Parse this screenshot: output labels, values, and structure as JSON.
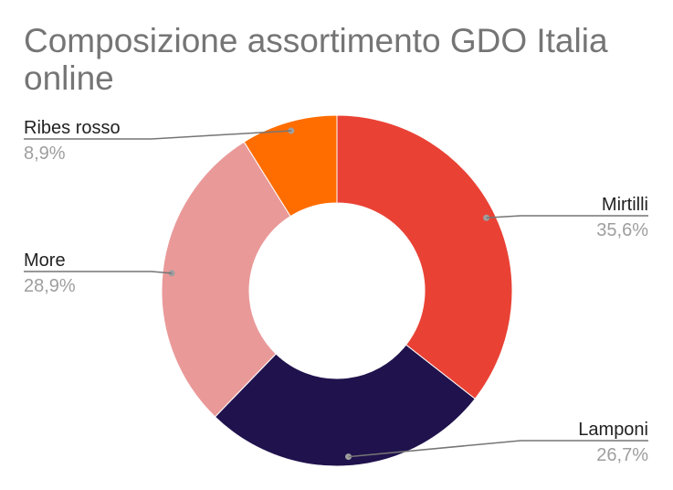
{
  "chart_data": {
    "type": "pie",
    "subtype": "donut",
    "title": "Composizione assortimento GDO Italia online",
    "start_angle_deg": 0,
    "direction": "clockwise",
    "slices": [
      {
        "label": "Mirtilli",
        "value": 35.6,
        "display": "35,6%",
        "color": "#e94235"
      },
      {
        "label": "Lamponi",
        "value": 26.7,
        "display": "26,7%",
        "color": "#20124d"
      },
      {
        "label": "More",
        "value": 28.9,
        "display": "28,9%",
        "color": "#ea9999"
      },
      {
        "label": "Ribes rosso",
        "value": 8.9,
        "display": "8,9%",
        "color": "#ff6d01"
      }
    ],
    "legend": "none",
    "label_style": "callout-lines"
  }
}
